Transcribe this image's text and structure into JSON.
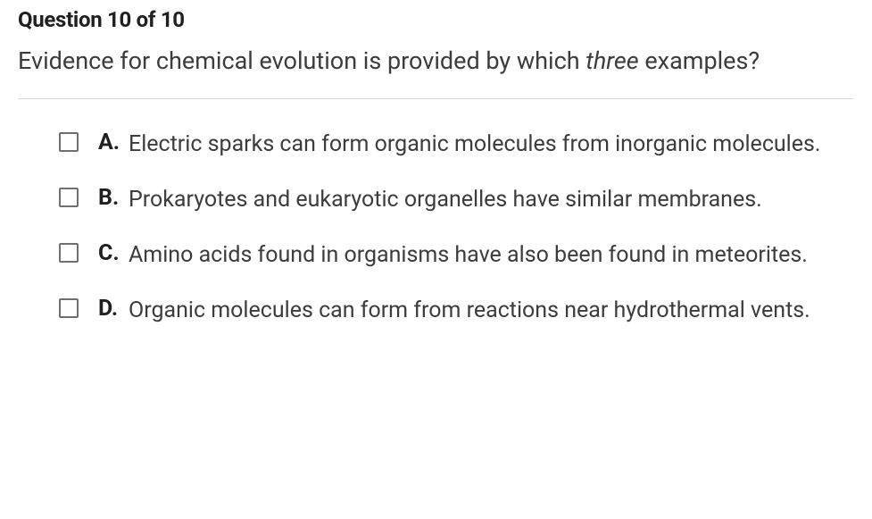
{
  "header": {
    "title": "Question 10 of 10"
  },
  "question": {
    "prefix": "Evidence for chemical evolution is provided by which ",
    "italic_word": "three",
    "suffix": " examples?"
  },
  "options": [
    {
      "letter": "A.",
      "text": "Electric sparks can form organic molecules from inorganic molecules."
    },
    {
      "letter": "B.",
      "text": "Prokaryotes and eukaryotic organelles have similar membranes."
    },
    {
      "letter": "C.",
      "text": "Amino acids found in organisms have also been found in meteorites."
    },
    {
      "letter": "D.",
      "text": "Organic molecules can form from reactions near hydrothermal vents."
    }
  ],
  "styles": {
    "header_fontsize": 24,
    "question_fontsize": 27,
    "option_fontsize": 25,
    "text_color": "#3c3c3c",
    "bold_color": "#202020",
    "divider_color": "#d8d8d8",
    "checkbox_border": "#707070",
    "background": "#ffffff"
  }
}
